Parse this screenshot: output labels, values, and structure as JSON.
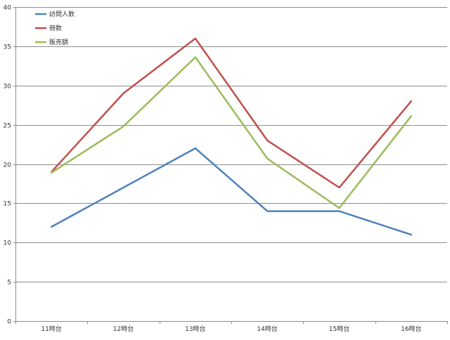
{
  "chart_data": {
    "type": "line",
    "title": "",
    "xlabel": "",
    "ylabel": "",
    "categories": [
      "11時台",
      "12時台",
      "13時台",
      "14時台",
      "15時台",
      "16時台"
    ],
    "ylim": [
      0,
      40
    ],
    "yticks": [
      0,
      5,
      10,
      15,
      20,
      25,
      30,
      35,
      40
    ],
    "grid": true,
    "legend_position": "top-left",
    "series": [
      {
        "name": "訪問人数",
        "color": "#4F81BD",
        "values": [
          12,
          17,
          22,
          14,
          14,
          11
        ]
      },
      {
        "name": "冊数",
        "color": "#C0504D",
        "values": [
          19,
          29,
          36,
          23,
          17,
          28
        ]
      },
      {
        "name": "販売額",
        "color": "#9BBB59",
        "values": [
          18.9,
          24.8,
          33.6,
          20.7,
          14.4,
          26.1
        ]
      }
    ]
  }
}
